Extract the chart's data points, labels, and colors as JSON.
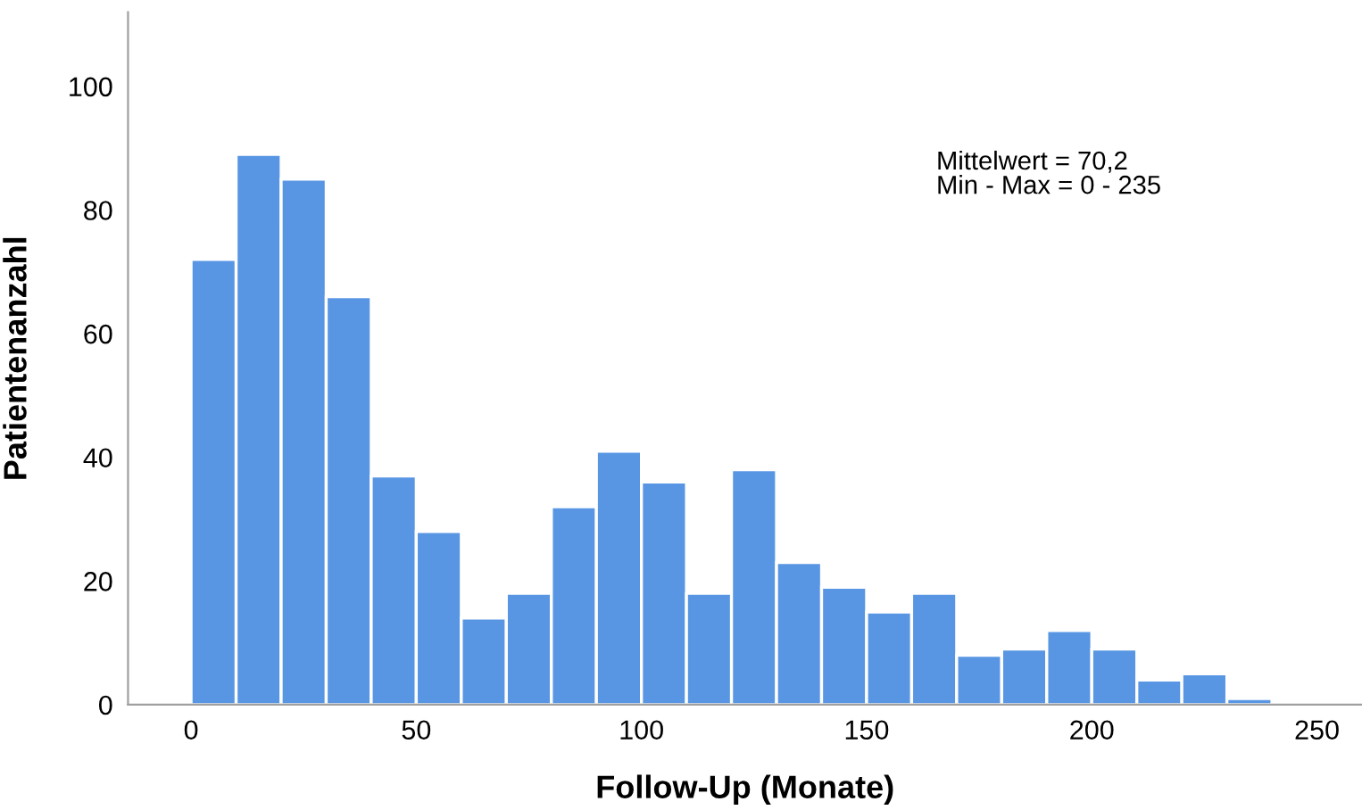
{
  "chart_data": {
    "type": "histogram",
    "xlabel": "Follow-Up (Monate)",
    "ylabel": "Patientenanzahl",
    "bins": [
      0,
      10,
      20,
      30,
      40,
      50,
      60,
      70,
      80,
      90,
      100,
      110,
      120,
      130,
      140,
      150,
      160,
      170,
      180,
      190,
      200,
      210,
      220,
      230,
      240
    ],
    "values": [
      72,
      89,
      85,
      66,
      37,
      28,
      14,
      18,
      32,
      41,
      36,
      18,
      38,
      23,
      19,
      15,
      18,
      8,
      9,
      12,
      9,
      4,
      5,
      1
    ],
    "color": "#5896e4",
    "xlim": [
      -14,
      260
    ],
    "xticks": [
      0,
      50,
      100,
      150,
      200,
      250
    ],
    "ylim": [
      0,
      112
    ],
    "yticks": [
      0,
      20,
      40,
      60,
      80,
      100
    ],
    "grid": false,
    "annotations": [
      "Mittelwert = 70,2\nMin - Max = 0 - 235"
    ]
  }
}
